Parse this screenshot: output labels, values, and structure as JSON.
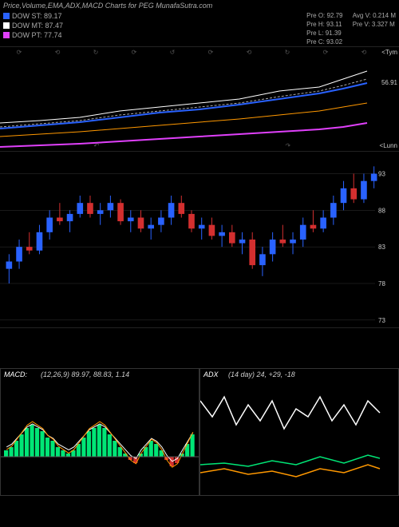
{
  "title": "Price,Volume,EMA,ADX,MACD Charts for PEG MunafaSutra.com",
  "legend": [
    {
      "label": "DOW ST: 89.17",
      "color": "#2962ff"
    },
    {
      "label": "DOW MT: 87.47",
      "color": "#ffffff"
    },
    {
      "label": "DOW PT: 77.74",
      "color": "#e040fb"
    }
  ],
  "stats_left": [
    {
      "k": "Pre",
      "v": "O: 92.79"
    },
    {
      "k": "Pre",
      "v": "H: 93.11"
    },
    {
      "k": "Pre",
      "v": "L: 91.39"
    },
    {
      "k": "Pre",
      "v": "C: 93.02"
    }
  ],
  "stats_right": [
    {
      "k": "Avg V:",
      "v": "0.214   M"
    },
    {
      "k": "Pre   V:",
      "v": "3.327 M"
    }
  ],
  "ema_panel": {
    "top_tag": "<Tym",
    "bot_tag": "<Lunn",
    "last_label": "56.91",
    "lines": [
      {
        "color": "#ffffff",
        "width": 1,
        "dash": "",
        "pts": [
          [
            0,
            95
          ],
          [
            50,
            92
          ],
          [
            100,
            88
          ],
          [
            150,
            80
          ],
          [
            200,
            75
          ],
          [
            250,
            70
          ],
          [
            300,
            65
          ],
          [
            350,
            55
          ],
          [
            400,
            50
          ],
          [
            430,
            40
          ],
          [
            460,
            30
          ]
        ]
      },
      {
        "color": "#aaaaaa",
        "width": 1,
        "dash": "3,2",
        "pts": [
          [
            0,
            100
          ],
          [
            50,
            96
          ],
          [
            100,
            92
          ],
          [
            150,
            85
          ],
          [
            200,
            80
          ],
          [
            250,
            75
          ],
          [
            300,
            70
          ],
          [
            350,
            62
          ],
          [
            400,
            55
          ],
          [
            430,
            48
          ],
          [
            460,
            40
          ]
        ]
      },
      {
        "color": "#2962ff",
        "width": 2,
        "dash": "",
        "pts": [
          [
            0,
            102
          ],
          [
            50,
            98
          ],
          [
            100,
            94
          ],
          [
            150,
            88
          ],
          [
            200,
            82
          ],
          [
            250,
            78
          ],
          [
            300,
            72
          ],
          [
            350,
            65
          ],
          [
            400,
            58
          ],
          [
            430,
            52
          ],
          [
            460,
            45
          ]
        ]
      },
      {
        "color": "#ff9800",
        "width": 1,
        "dash": "",
        "pts": [
          [
            0,
            112
          ],
          [
            50,
            109
          ],
          [
            100,
            106
          ],
          [
            150,
            102
          ],
          [
            200,
            98
          ],
          [
            250,
            94
          ],
          [
            300,
            90
          ],
          [
            350,
            85
          ],
          [
            400,
            80
          ],
          [
            430,
            75
          ],
          [
            460,
            70
          ]
        ]
      },
      {
        "color": "#e040fb",
        "width": 2,
        "dash": "",
        "pts": [
          [
            0,
            125
          ],
          [
            50,
            123
          ],
          [
            100,
            121
          ],
          [
            150,
            118
          ],
          [
            200,
            115
          ],
          [
            250,
            112
          ],
          [
            300,
            109
          ],
          [
            350,
            106
          ],
          [
            400,
            103
          ],
          [
            430,
            100
          ],
          [
            460,
            95
          ]
        ]
      }
    ],
    "marks": [
      "⟳",
      "⟲",
      "↻",
      "⟳",
      "↺",
      "⟳",
      "⟲",
      "↻",
      "⟳",
      "⟲"
    ]
  },
  "candle_panel": {
    "ymin": 72,
    "ymax": 96,
    "gridlines": [
      93,
      88,
      83,
      78,
      73
    ],
    "candles": [
      {
        "o": 80,
        "h": 82,
        "l": 78,
        "c": 81,
        "t": "u"
      },
      {
        "o": 81,
        "h": 84,
        "l": 80,
        "c": 83,
        "t": "u"
      },
      {
        "o": 83,
        "h": 85,
        "l": 82,
        "c": 82.5,
        "t": "d"
      },
      {
        "o": 82.5,
        "h": 86,
        "l": 82,
        "c": 85,
        "t": "u"
      },
      {
        "o": 85,
        "h": 88,
        "l": 84,
        "c": 87,
        "t": "u"
      },
      {
        "o": 87,
        "h": 89,
        "l": 86,
        "c": 86.5,
        "t": "d"
      },
      {
        "o": 86.5,
        "h": 88,
        "l": 85,
        "c": 87.5,
        "t": "u"
      },
      {
        "o": 87.5,
        "h": 90,
        "l": 87,
        "c": 89,
        "t": "u"
      },
      {
        "o": 89,
        "h": 90,
        "l": 87,
        "c": 87.5,
        "t": "d"
      },
      {
        "o": 87.5,
        "h": 89,
        "l": 86,
        "c": 88,
        "t": "u"
      },
      {
        "o": 88,
        "h": 90,
        "l": 87,
        "c": 89,
        "t": "u"
      },
      {
        "o": 89,
        "h": 89.5,
        "l": 86,
        "c": 86.5,
        "t": "d"
      },
      {
        "o": 86.5,
        "h": 88,
        "l": 85,
        "c": 87,
        "t": "u"
      },
      {
        "o": 87,
        "h": 88,
        "l": 85,
        "c": 85.5,
        "t": "d"
      },
      {
        "o": 85.5,
        "h": 87,
        "l": 84,
        "c": 86,
        "t": "u"
      },
      {
        "o": 86,
        "h": 88,
        "l": 85,
        "c": 87,
        "t": "u"
      },
      {
        "o": 87,
        "h": 90,
        "l": 86,
        "c": 89,
        "t": "u"
      },
      {
        "o": 89,
        "h": 90,
        "l": 87,
        "c": 87.5,
        "t": "d"
      },
      {
        "o": 87.5,
        "h": 88,
        "l": 85,
        "c": 85.5,
        "t": "d"
      },
      {
        "o": 85.5,
        "h": 87,
        "l": 84,
        "c": 86,
        "t": "u"
      },
      {
        "o": 86,
        "h": 87,
        "l": 84,
        "c": 84.5,
        "t": "d"
      },
      {
        "o": 84.5,
        "h": 86,
        "l": 83,
        "c": 85,
        "t": "u"
      },
      {
        "o": 85,
        "h": 86,
        "l": 83,
        "c": 83.5,
        "t": "d"
      },
      {
        "o": 83.5,
        "h": 85,
        "l": 82,
        "c": 84,
        "t": "u"
      },
      {
        "o": 84,
        "h": 85,
        "l": 80,
        "c": 80.5,
        "t": "d"
      },
      {
        "o": 80.5,
        "h": 83,
        "l": 79,
        "c": 82,
        "t": "u"
      },
      {
        "o": 82,
        "h": 85,
        "l": 81,
        "c": 84,
        "t": "u"
      },
      {
        "o": 84,
        "h": 86,
        "l": 83,
        "c": 83.5,
        "t": "d"
      },
      {
        "o": 83.5,
        "h": 85,
        "l": 82,
        "c": 84,
        "t": "u"
      },
      {
        "o": 84,
        "h": 87,
        "l": 83,
        "c": 86,
        "t": "u"
      },
      {
        "o": 86,
        "h": 88,
        "l": 85,
        "c": 85.5,
        "t": "d"
      },
      {
        "o": 85.5,
        "h": 88,
        "l": 85,
        "c": 87,
        "t": "u"
      },
      {
        "o": 87,
        "h": 90,
        "l": 86,
        "c": 89,
        "t": "u"
      },
      {
        "o": 89,
        "h": 92,
        "l": 88,
        "c": 91,
        "t": "u"
      },
      {
        "o": 91,
        "h": 93,
        "l": 89,
        "c": 89.5,
        "t": "d"
      },
      {
        "o": 89.5,
        "h": 93,
        "l": 89,
        "c": 92,
        "t": "u"
      },
      {
        "o": 92,
        "h": 94,
        "l": 91,
        "c": 93,
        "t": "u"
      }
    ]
  },
  "macd": {
    "label": "MACD:",
    "meta": "(12,26,9) 89.97, 88.83,  1.14",
    "bars": [
      0.2,
      0.3,
      0.5,
      0.7,
      0.9,
      1.0,
      0.9,
      0.8,
      0.6,
      0.5,
      0.3,
      0.2,
      0.1,
      0.2,
      0.4,
      0.6,
      0.8,
      0.9,
      1.0,
      0.9,
      0.7,
      0.5,
      0.3,
      0.1,
      -0.1,
      -0.2,
      0.1,
      0.3,
      0.5,
      0.4,
      0.2,
      -0.1,
      -0.3,
      -0.2,
      0.1,
      0.4,
      0.7
    ],
    "signal": {
      "color": "#ffffff",
      "pts": []
    },
    "macd_line": {
      "color": "#ff9800",
      "pts": []
    }
  },
  "adx": {
    "label": "ADX",
    "meta": "(14 day) 24, +29, -18",
    "lines": [
      {
        "color": "#ffffff",
        "pts": [
          [
            0,
            40
          ],
          [
            15,
            60
          ],
          [
            30,
            35
          ],
          [
            45,
            70
          ],
          [
            60,
            45
          ],
          [
            75,
            65
          ],
          [
            90,
            40
          ],
          [
            105,
            75
          ],
          [
            120,
            50
          ],
          [
            135,
            60
          ],
          [
            150,
            35
          ],
          [
            165,
            65
          ],
          [
            180,
            45
          ],
          [
            195,
            70
          ],
          [
            210,
            40
          ],
          [
            225,
            55
          ]
        ]
      },
      {
        "color": "#00e676",
        "pts": [
          [
            0,
            120
          ],
          [
            30,
            118
          ],
          [
            60,
            122
          ],
          [
            90,
            115
          ],
          [
            120,
            120
          ],
          [
            150,
            110
          ],
          [
            180,
            118
          ],
          [
            210,
            108
          ],
          [
            225,
            112
          ]
        ]
      },
      {
        "color": "#ff9800",
        "pts": [
          [
            0,
            130
          ],
          [
            30,
            125
          ],
          [
            60,
            132
          ],
          [
            90,
            128
          ],
          [
            120,
            135
          ],
          [
            150,
            125
          ],
          [
            180,
            130
          ],
          [
            210,
            120
          ],
          [
            225,
            125
          ]
        ]
      }
    ]
  }
}
